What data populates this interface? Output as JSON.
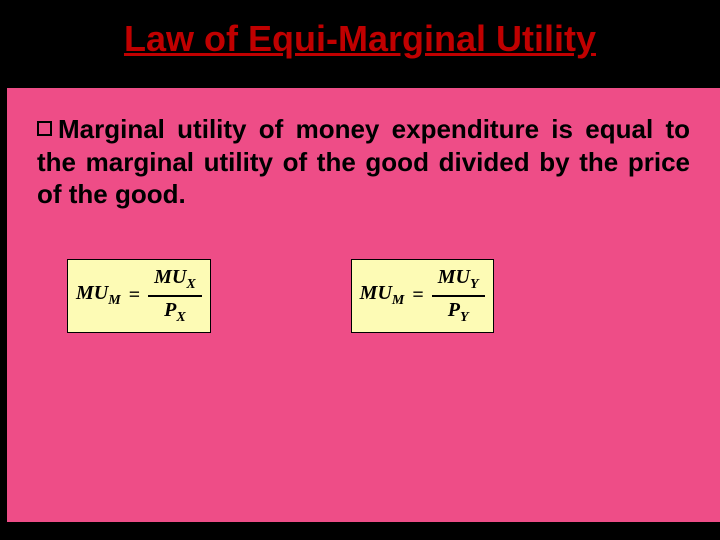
{
  "slide": {
    "title": "Law of Equi-Marginal Utility",
    "title_color": "#c00000",
    "content_bg": "#ee4d87",
    "body_text": "Marginal utility of money expenditure is equal to the marginal utility of the good divided by the price of the good.",
    "formulas": [
      {
        "left_base": "MU",
        "left_sub": "M",
        "num_base": "MU",
        "num_sub": "X",
        "den_base": "P",
        "den_sub": "X"
      },
      {
        "left_base": "MU",
        "left_sub": "M",
        "num_base": "MU",
        "num_sub": "Y",
        "den_base": "P",
        "den_sub": "Y"
      }
    ],
    "formula_bg": "#fdfbb5"
  }
}
